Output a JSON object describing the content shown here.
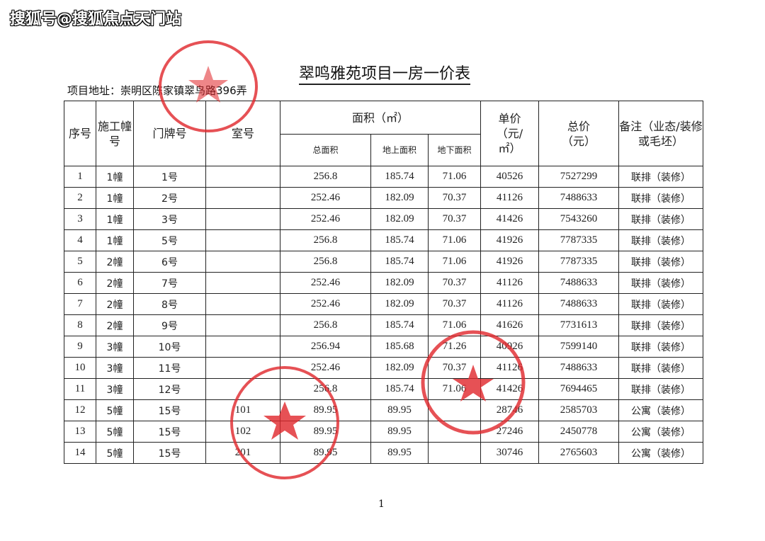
{
  "watermark": "搜狐号@搜狐焦点天门站",
  "title": "翠鸣雅苑项目一房一价表",
  "address": "项目地址：崇明区陈家镇翠鸟路396弄",
  "headers": {
    "seq": "序号",
    "building": "施工幢号",
    "door": "门牌号",
    "room": "室号",
    "area": "面积（㎡）",
    "total_area": "总面积",
    "above_area": "地上面积",
    "below_area": "地下面积",
    "unit_price": "单价（元/㎡）",
    "total_price": "总价（元）",
    "remark": "备注（业态/装修或毛坯）"
  },
  "rows": [
    {
      "seq": "1",
      "building": "1幢",
      "door": "1号",
      "room": "",
      "total": "256.8",
      "above": "185.74",
      "below": "71.06",
      "unit": "40526",
      "price": "7527299",
      "remark": "联排（装修）"
    },
    {
      "seq": "2",
      "building": "1幢",
      "door": "2号",
      "room": "",
      "total": "252.46",
      "above": "182.09",
      "below": "70.37",
      "unit": "41126",
      "price": "7488633",
      "remark": "联排（装修）"
    },
    {
      "seq": "3",
      "building": "1幢",
      "door": "3号",
      "room": "",
      "total": "252.46",
      "above": "182.09",
      "below": "70.37",
      "unit": "41426",
      "price": "7543260",
      "remark": "联排（装修）"
    },
    {
      "seq": "4",
      "building": "1幢",
      "door": "5号",
      "room": "",
      "total": "256.8",
      "above": "185.74",
      "below": "71.06",
      "unit": "41926",
      "price": "7787335",
      "remark": "联排（装修）"
    },
    {
      "seq": "5",
      "building": "2幢",
      "door": "6号",
      "room": "",
      "total": "256.8",
      "above": "185.74",
      "below": "71.06",
      "unit": "41926",
      "price": "7787335",
      "remark": "联排（装修）"
    },
    {
      "seq": "6",
      "building": "2幢",
      "door": "7号",
      "room": "",
      "total": "252.46",
      "above": "182.09",
      "below": "70.37",
      "unit": "41126",
      "price": "7488633",
      "remark": "联排（装修）"
    },
    {
      "seq": "7",
      "building": "2幢",
      "door": "8号",
      "room": "",
      "total": "252.46",
      "above": "182.09",
      "below": "70.37",
      "unit": "41126",
      "price": "7488633",
      "remark": "联排（装修）"
    },
    {
      "seq": "8",
      "building": "2幢",
      "door": "9号",
      "room": "",
      "total": "256.8",
      "above": "185.74",
      "below": "71.06",
      "unit": "41626",
      "price": "7731613",
      "remark": "联排（装修）"
    },
    {
      "seq": "9",
      "building": "3幢",
      "door": "10号",
      "room": "",
      "total": "256.94",
      "above": "185.68",
      "below": "71.26",
      "unit": "40926",
      "price": "7599140",
      "remark": "联排（装修）"
    },
    {
      "seq": "10",
      "building": "3幢",
      "door": "11号",
      "room": "",
      "total": "252.46",
      "above": "182.09",
      "below": "70.37",
      "unit": "41126",
      "price": "7488633",
      "remark": "联排（装修）"
    },
    {
      "seq": "11",
      "building": "3幢",
      "door": "12号",
      "room": "",
      "total": "256.8",
      "above": "185.74",
      "below": "71.06",
      "unit": "41426",
      "price": "7694465",
      "remark": "联排（装修）"
    },
    {
      "seq": "12",
      "building": "5幢",
      "door": "15号",
      "room": "101",
      "total": "89.95",
      "above": "89.95",
      "below": "",
      "unit": "28746",
      "price": "2585703",
      "remark": "公寓（装修）"
    },
    {
      "seq": "13",
      "building": "5幢",
      "door": "15号",
      "room": "102",
      "total": "89.95",
      "above": "89.95",
      "below": "",
      "unit": "27246",
      "price": "2450778",
      "remark": "公寓（装修）"
    },
    {
      "seq": "14",
      "building": "5幢",
      "door": "15号",
      "room": "201",
      "total": "89.95",
      "above": "89.95",
      "below": "",
      "unit": "30746",
      "price": "2765603",
      "remark": "公寓（装修）"
    }
  ],
  "page_number": "1",
  "stamp_color": "#e0262b"
}
